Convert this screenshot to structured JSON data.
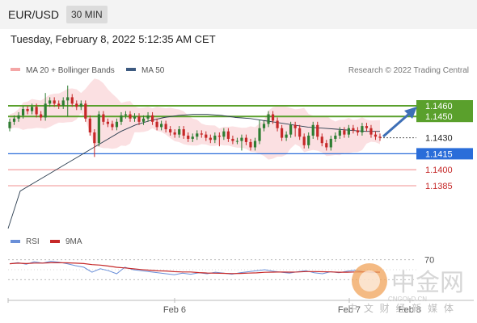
{
  "header": {
    "symbol": "EUR/USD",
    "timeframe": "30 MIN",
    "timestamp": "Tuesday, February 8, 2022 5:12:35 AM CET"
  },
  "legend": {
    "bollinger": "MA 20 + Bollinger Bands",
    "ma50": "MA 50",
    "credit": "Research © 2022 Trading Central"
  },
  "rsi_legend": {
    "rsi": "RSI",
    "ma": "9MA"
  },
  "watermark": {
    "brand": "中金网",
    "url": "CNGOLD.CN",
    "tagline": "中 文 财 经 新 媒 体"
  },
  "colors": {
    "up": "#2e7d32",
    "down": "#c62828",
    "bands": "#fadadd",
    "ma50": "#4a6fa5",
    "resistance": "#5aa02c",
    "pivot": "#2a6dd9",
    "support": "#f4a6a6",
    "rsi": "#6a8fd8",
    "rsi_ma": "#c62828"
  },
  "chart_data": {
    "type": "candlestick",
    "title": "EUR/USD 30 MIN",
    "x_labels": [
      "Feb 6",
      "Feb 7",
      "Feb 8"
    ],
    "y_range": [
      1.137,
      1.148
    ],
    "price_levels": [
      {
        "label": "1.1460",
        "value": 1.146,
        "role": "resistance"
      },
      {
        "label": "1.1450",
        "value": 1.145,
        "role": "resistance"
      },
      {
        "label": "1.1430",
        "value": 1.143,
        "role": "last"
      },
      {
        "label": "1.1415",
        "value": 1.1415,
        "role": "pivot"
      },
      {
        "label": "1.1400",
        "value": 1.14,
        "role": "support"
      },
      {
        "label": "1.1385",
        "value": 1.1385,
        "role": "support"
      }
    ],
    "closes": [
      1.1445,
      1.1448,
      1.1451,
      1.1457,
      1.1455,
      1.1459,
      1.1452,
      1.1449,
      1.1462,
      1.1465,
      1.1462,
      1.146,
      1.1465,
      1.1468,
      1.1462,
      1.1459,
      1.1462,
      1.1448,
      1.1435,
      1.1425,
      1.1452,
      1.1445,
      1.1443,
      1.144,
      1.1445,
      1.1451,
      1.1452,
      1.1448,
      1.145,
      1.1445,
      1.1448,
      1.1451,
      1.1445,
      1.144,
      1.1443,
      1.1438,
      1.1435,
      1.1433,
      1.1438,
      1.1432,
      1.1429,
      1.1431,
      1.1434,
      1.1433,
      1.143,
      1.1428,
      1.1432,
      1.1431,
      1.1436,
      1.1429,
      1.1427,
      1.1427,
      1.143,
      1.1426,
      1.1421,
      1.1427,
      1.1439,
      1.1443,
      1.1452,
      1.1446,
      1.1439,
      1.143,
      1.1433,
      1.1442,
      1.1439,
      1.1431,
      1.1423,
      1.1432,
      1.1442,
      1.1431,
      1.1425,
      1.1421,
      1.1429,
      1.1432,
      1.1437,
      1.1433,
      1.1439,
      1.1437,
      1.1435,
      1.1441,
      1.1439,
      1.1433,
      1.1431,
      1.143
    ],
    "ma50": [
      1.138,
      1.1388,
      1.1396,
      1.1404,
      1.1412,
      1.142,
      1.1428,
      1.1436,
      1.1442,
      1.1446,
      1.1449,
      1.1451,
      1.1452,
      1.1452,
      1.1451,
      1.1449,
      1.1448,
      1.1446,
      1.1444,
      1.1442,
      1.144,
      1.1439,
      1.1438,
      1.1437,
      1.1436,
      1.1436
    ],
    "rsi": [
      62,
      64,
      61,
      66,
      63,
      67,
      65,
      62,
      58,
      55,
      45,
      52,
      48,
      42,
      55,
      50,
      48,
      46,
      44,
      42,
      40,
      43,
      41,
      44,
      42,
      45,
      43,
      41,
      44,
      46,
      48,
      50,
      47,
      45,
      43,
      46,
      48,
      44,
      42,
      46,
      44,
      47,
      49,
      46,
      44,
      45
    ],
    "rsi_levels": [
      70,
      30
    ]
  }
}
